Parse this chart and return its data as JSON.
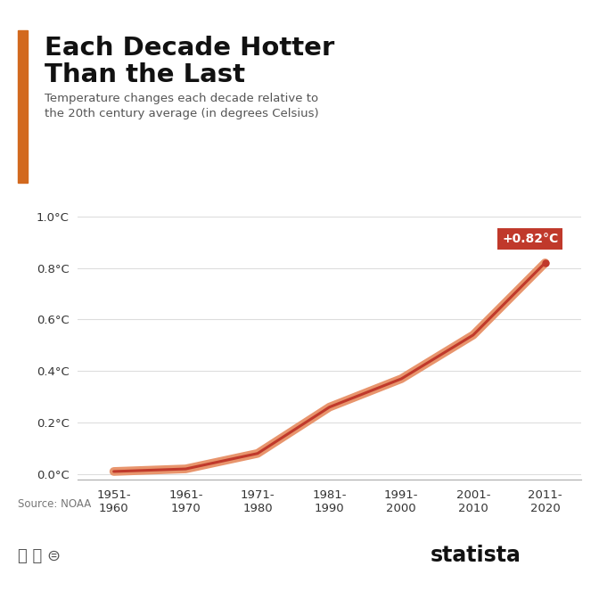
{
  "title_line1": "Each Decade Hotter",
  "title_line2": "Than the Last",
  "subtitle_line1": "Temperature changes each decade relative to",
  "subtitle_line2": "the 20th century average (in degrees Celsius)",
  "source": "Source: NOAA",
  "x_labels": [
    "1951-\n1960",
    "1961-\n1970",
    "1971-\n1980",
    "1981-\n1990",
    "1991-\n2000",
    "2001-\n2010",
    "2011-\n2020"
  ],
  "x_values": [
    0,
    1,
    2,
    3,
    4,
    5,
    6
  ],
  "y_values": [
    0.01,
    0.02,
    0.08,
    0.26,
    0.37,
    0.54,
    0.82
  ],
  "yticks": [
    0.0,
    0.2,
    0.4,
    0.6,
    0.8,
    1.0
  ],
  "ytick_labels": [
    "0.0°C",
    "0.2°C",
    "0.4°C",
    "0.6°C",
    "0.8°C",
    "1.0°C"
  ],
  "line_color": "#c0392b",
  "line_shadow_color": "#e8956d",
  "annotation_text": "+0.82°C",
  "annotation_box_color": "#c0392b",
  "annotation_text_color": "#ffffff",
  "title_color": "#111111",
  "subtitle_color": "#555555",
  "background_color": "#ffffff",
  "grid_color": "#dddddd",
  "accent_bar_color": "#d2691e",
  "tick_color": "#333333",
  "ylim": [
    -0.02,
    1.05
  ],
  "statista_color": "#111111"
}
